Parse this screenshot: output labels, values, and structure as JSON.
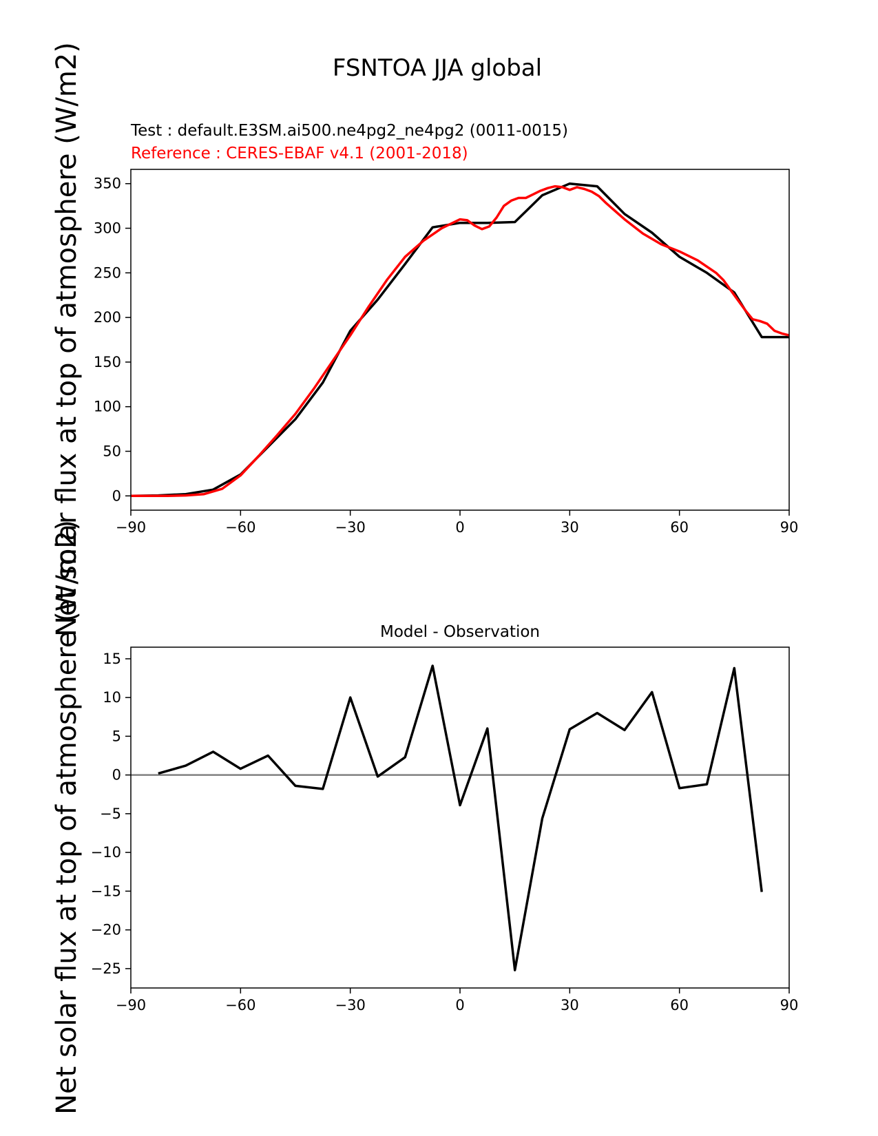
{
  "page": {
    "title": "FSNTOA JJA global"
  },
  "chart_data": [
    {
      "type": "line",
      "test_label": "Test : default.E3SM.ai500.ne4pg2_ne4pg2 (0011-0015)",
      "reference_label": "Reference : CERES-EBAF v4.1 (2001-2018)",
      "ylabel": "Net solar flux at top of atmosphere (W/m2)",
      "xlim": [
        -90,
        90
      ],
      "ylim": [
        -16,
        366
      ],
      "xticks": [
        -90,
        -60,
        -30,
        0,
        30,
        60,
        90
      ],
      "yticks": [
        0,
        50,
        100,
        150,
        200,
        250,
        300,
        350
      ],
      "series": [
        {
          "color": "#000000",
          "x": [
            -90,
            -82.5,
            -75,
            -67.5,
            -60,
            -52.5,
            -45,
            -37.5,
            -30,
            -22.5,
            -15,
            -7.5,
            0,
            7.5,
            15,
            22.5,
            30,
            37.5,
            45,
            52.5,
            60,
            67.5,
            75,
            82.5,
            90
          ],
          "y": [
            0,
            0.5,
            2,
            7,
            24,
            55,
            86,
            127,
            185,
            220,
            260,
            301,
            306,
            306,
            307,
            337,
            350,
            347,
            316,
            295,
            268,
            250,
            228,
            178,
            178
          ]
        },
        {
          "color": "#ff0000",
          "x": [
            -90,
            -85,
            -80,
            -75,
            -70,
            -65,
            -60,
            -55,
            -50,
            -45,
            -40,
            -35,
            -30,
            -25,
            -20,
            -15,
            -10,
            -5,
            -2,
            0,
            2,
            4,
            6,
            8,
            10,
            12,
            14,
            16,
            18,
            20,
            22,
            24,
            26,
            28,
            30,
            32,
            34,
            36,
            38,
            40,
            45,
            50,
            55,
            60,
            65,
            70,
            72,
            75,
            78,
            80,
            82,
            84,
            86,
            88,
            90
          ],
          "y": [
            0,
            0,
            0,
            0.5,
            2,
            8,
            23,
            45,
            68,
            92,
            120,
            150,
            180,
            212,
            242,
            268,
            286,
            300,
            306,
            310,
            309,
            303,
            299,
            302,
            312,
            325,
            331,
            334,
            334,
            338,
            342,
            345,
            347,
            346,
            343,
            346,
            344,
            341,
            336,
            328,
            310,
            294,
            282,
            274,
            264,
            250,
            242,
            225,
            208,
            198,
            196,
            193,
            185,
            182,
            180
          ]
        }
      ]
    },
    {
      "type": "line",
      "title": "Model - Observation",
      "xlim": [
        -90,
        90
      ],
      "ylim": [
        -27.5,
        16.5
      ],
      "xticks": [
        -90,
        -60,
        -30,
        0,
        30,
        60,
        90
      ],
      "yticks": [
        -25,
        -20,
        -15,
        -10,
        -5,
        0,
        5,
        10,
        15
      ],
      "zero_line_color": "#808080",
      "series": [
        {
          "color": "#000000",
          "x": [
            -82.5,
            -75,
            -67.5,
            -60,
            -52.5,
            -45,
            -37.5,
            -30,
            -22.5,
            -15,
            -7.5,
            0,
            7.5,
            15,
            22.5,
            30,
            37.5,
            45,
            52.5,
            60,
            67.5,
            75,
            82.5
          ],
          "y": [
            0.2,
            1.2,
            3.0,
            0.8,
            2.5,
            -1.4,
            -1.8,
            10.0,
            -0.2,
            2.3,
            14.1,
            -3.9,
            6.0,
            -25.2,
            -5.6,
            5.9,
            8.0,
            5.8,
            10.7,
            -1.7,
            -1.2,
            13.8,
            -15.1
          ]
        }
      ]
    }
  ]
}
